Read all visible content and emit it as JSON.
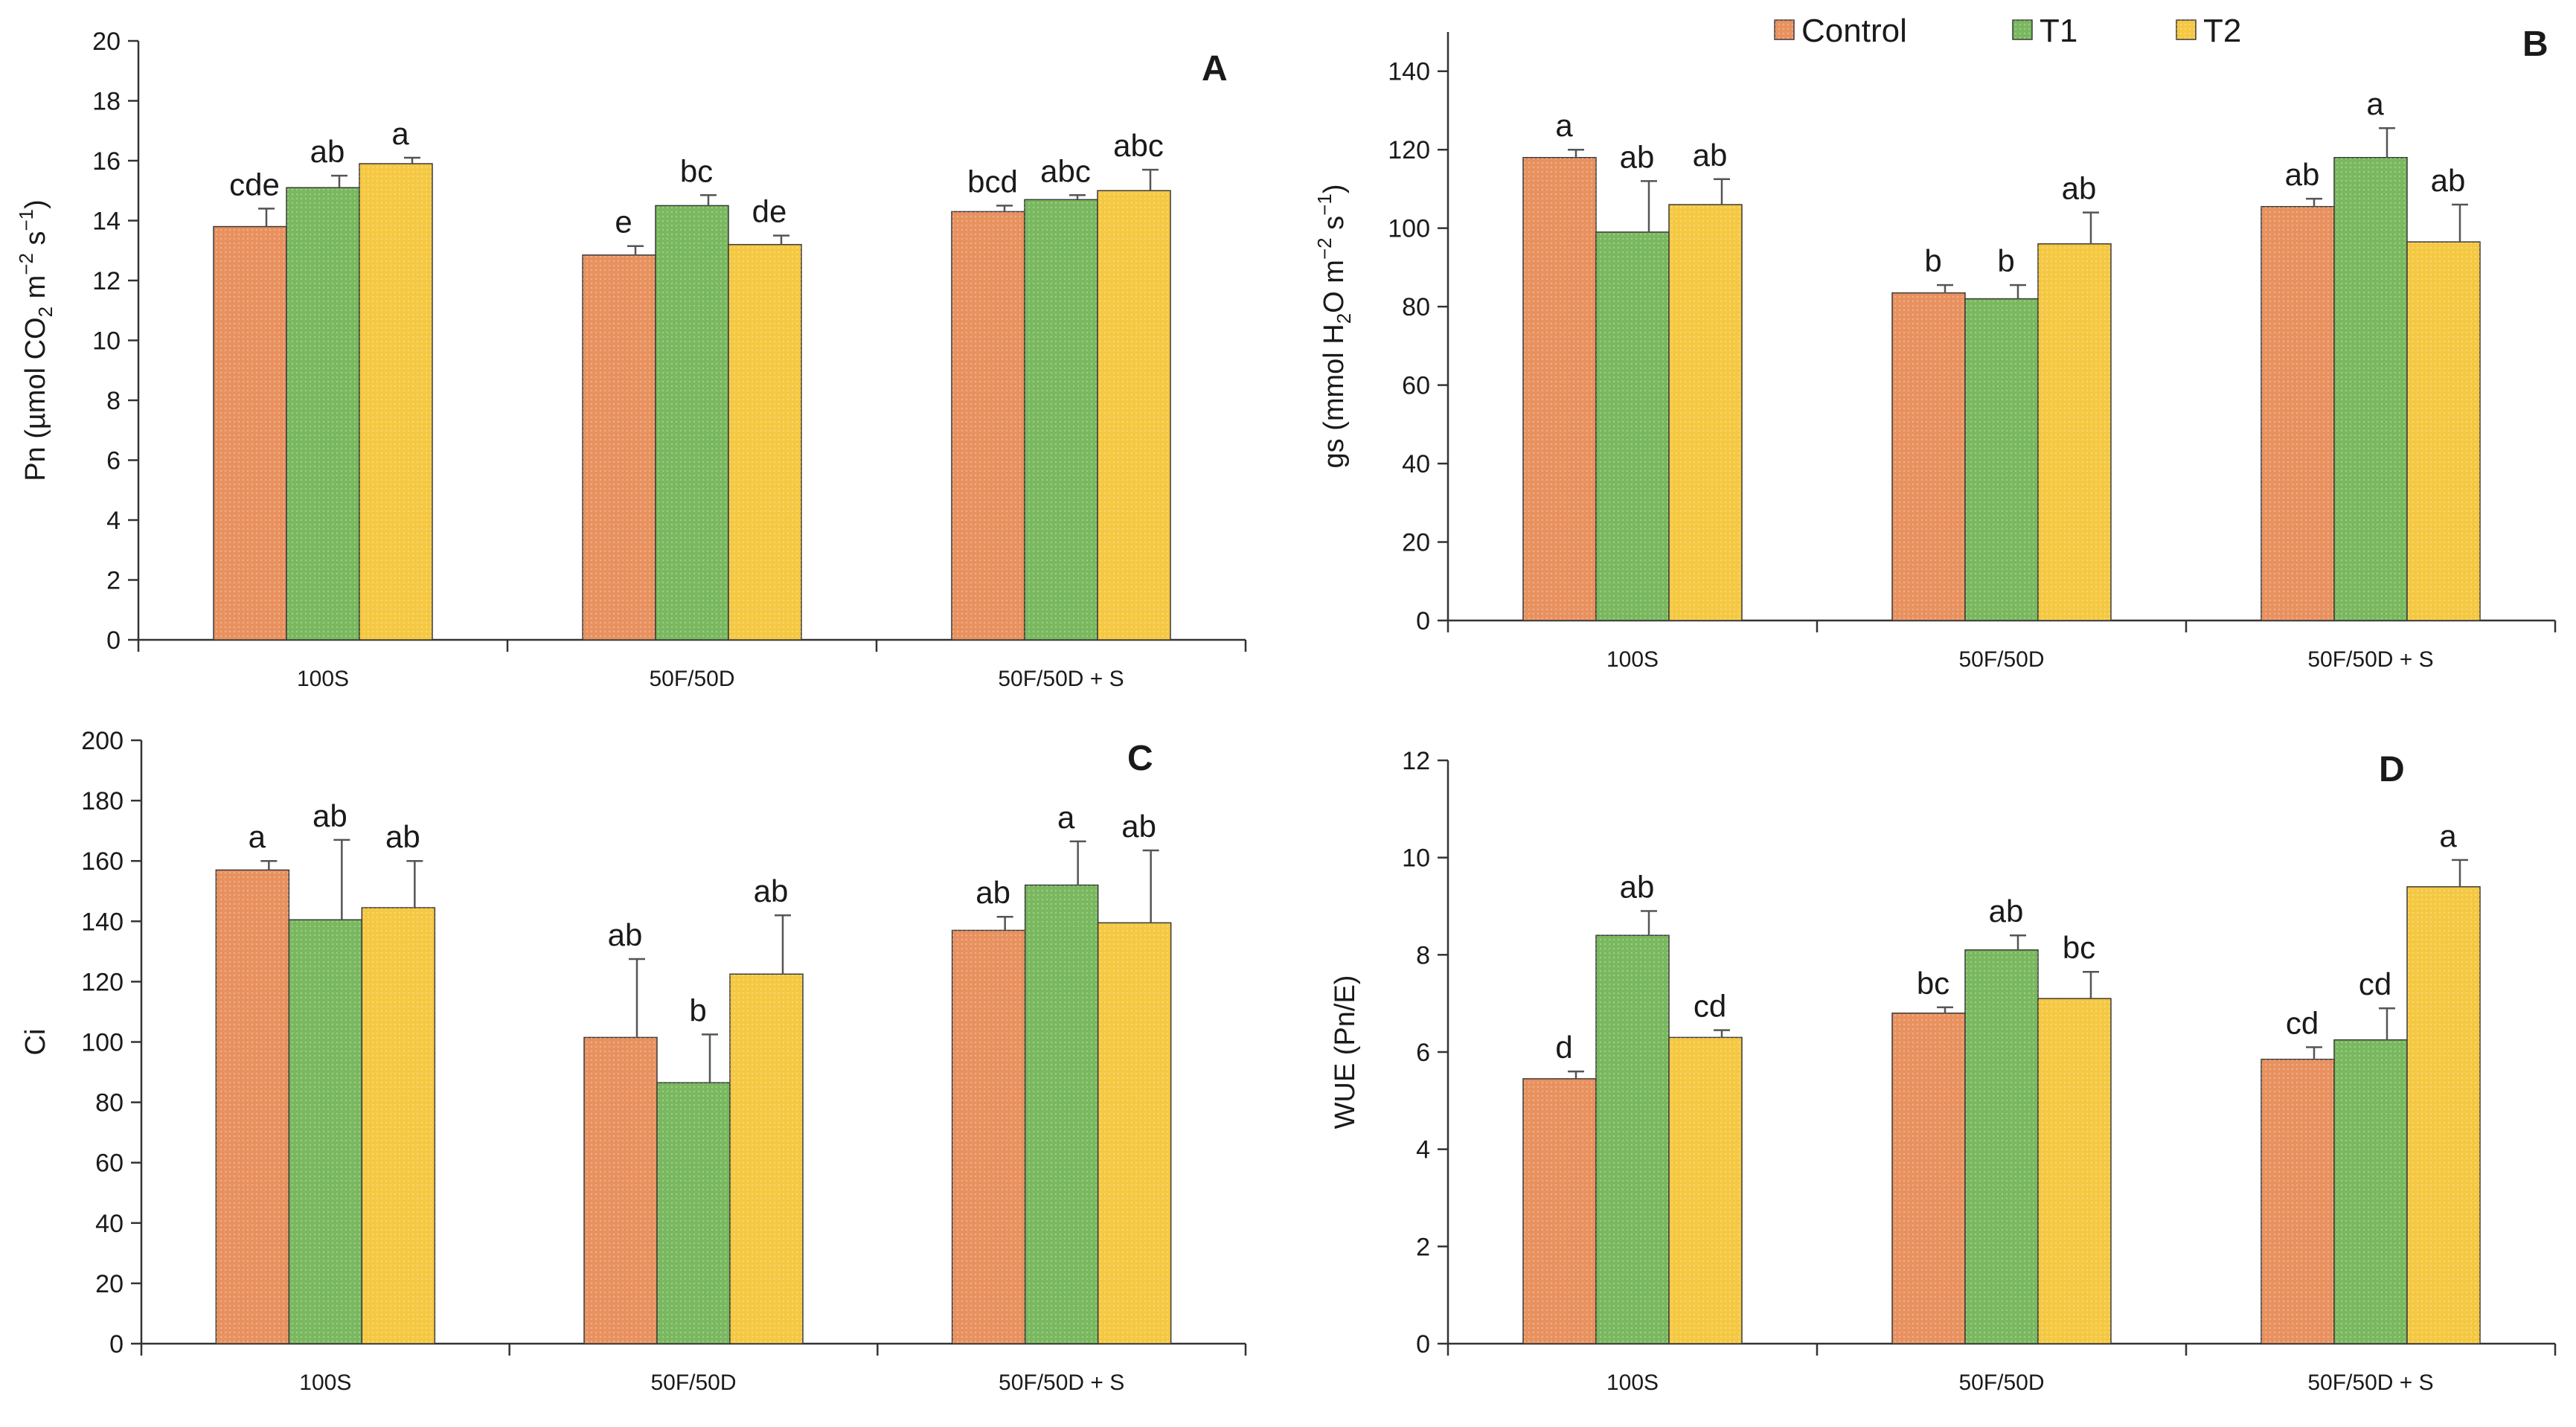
{
  "legend": [
    {
      "name": "Control",
      "color": "#e8915f"
    },
    {
      "name": "T1",
      "color": "#79b85e"
    },
    {
      "name": "T2",
      "color": "#f5c842"
    }
  ],
  "chart_data": [
    {
      "panel": "A",
      "type": "bar",
      "ylabel_parts": [
        "Pn (µmol CO",
        "2",
        " m",
        "−2",
        " s",
        "−1",
        ")"
      ],
      "ylim": [
        0,
        20
      ],
      "yticks": [
        0,
        2,
        4,
        6,
        8,
        10,
        12,
        14,
        16,
        18,
        20
      ],
      "categories": [
        "100S",
        "50F/50D",
        "50F/50D + S"
      ],
      "series": [
        {
          "name": "Control",
          "values": [
            13.8,
            12.85,
            14.3
          ],
          "errors": [
            0.6,
            0.3,
            0.2
          ],
          "letters": [
            "cde",
            "e",
            "bcd"
          ]
        },
        {
          "name": "T1",
          "values": [
            15.1,
            14.5,
            14.7
          ],
          "errors": [
            0.4,
            0.35,
            0.15
          ],
          "letters": [
            "ab",
            "bc",
            "abc"
          ]
        },
        {
          "name": "T2",
          "values": [
            15.9,
            13.2,
            15.0
          ],
          "errors": [
            0.2,
            0.3,
            0.7
          ],
          "letters": [
            "a",
            "de",
            "abc"
          ]
        }
      ]
    },
    {
      "panel": "B",
      "type": "bar",
      "ylabel_parts": [
        "gs (mmol H",
        "2",
        "O m",
        "−2",
        " s",
        "−1",
        ")"
      ],
      "ylim": [
        0,
        150
      ],
      "yticks": [
        0,
        20,
        40,
        60,
        80,
        100,
        120,
        140
      ],
      "categories": [
        "100S",
        "50F/50D",
        "50F/50D + S"
      ],
      "series": [
        {
          "name": "Control",
          "values": [
            118,
            83.5,
            105.5
          ],
          "errors": [
            2,
            2,
            2
          ],
          "letters": [
            "a",
            "b",
            "ab"
          ]
        },
        {
          "name": "T1",
          "values": [
            99,
            82,
            118
          ],
          "errors": [
            13,
            3.5,
            7.5
          ],
          "letters": [
            "ab",
            "b",
            "a"
          ]
        },
        {
          "name": "T2",
          "values": [
            106,
            96,
            96.5
          ],
          "errors": [
            6.5,
            8,
            9.5
          ],
          "letters": [
            "ab",
            "ab",
            "ab"
          ]
        }
      ]
    },
    {
      "panel": "C",
      "type": "bar",
      "ylabel_parts": [
        "Ci"
      ],
      "ylim": [
        0,
        200
      ],
      "yticks": [
        0,
        20,
        40,
        60,
        80,
        100,
        120,
        140,
        160,
        180,
        200
      ],
      "categories": [
        "100S",
        "50F/50D",
        "50F/50D + S"
      ],
      "series": [
        {
          "name": "Control",
          "values": [
            157,
            101.5,
            137
          ],
          "errors": [
            3,
            26,
            4.5
          ],
          "letters": [
            "a",
            "ab",
            "ab"
          ]
        },
        {
          "name": "T1",
          "values": [
            140.5,
            86.5,
            152
          ],
          "errors": [
            26.5,
            16,
            14.5
          ],
          "letters": [
            "ab",
            "b",
            "a"
          ]
        },
        {
          "name": "T2",
          "values": [
            144.5,
            122.5,
            139.5
          ],
          "errors": [
            15.5,
            19.5,
            24
          ],
          "letters": [
            "ab",
            "ab",
            "ab"
          ]
        }
      ]
    },
    {
      "panel": "D",
      "type": "bar",
      "ylabel_parts": [
        "WUE (Pn/E)"
      ],
      "ylim": [
        0,
        12
      ],
      "yticks": [
        0,
        2,
        4,
        6,
        8,
        10,
        12
      ],
      "categories": [
        "100S",
        "50F/50D",
        "50F/50D + S"
      ],
      "series": [
        {
          "name": "Control",
          "values": [
            5.45,
            6.8,
            5.85
          ],
          "errors": [
            0.15,
            0.12,
            0.25
          ],
          "letters": [
            "d",
            "bc",
            "cd"
          ]
        },
        {
          "name": "T1",
          "values": [
            8.4,
            8.1,
            6.25
          ],
          "errors": [
            0.5,
            0.3,
            0.65
          ],
          "letters": [
            "ab",
            "ab",
            "cd"
          ]
        },
        {
          "name": "T2",
          "values": [
            6.3,
            7.1,
            9.4
          ],
          "errors": [
            0.15,
            0.55,
            0.55
          ],
          "letters": [
            "cd",
            "bc",
            "a"
          ]
        }
      ]
    }
  ]
}
